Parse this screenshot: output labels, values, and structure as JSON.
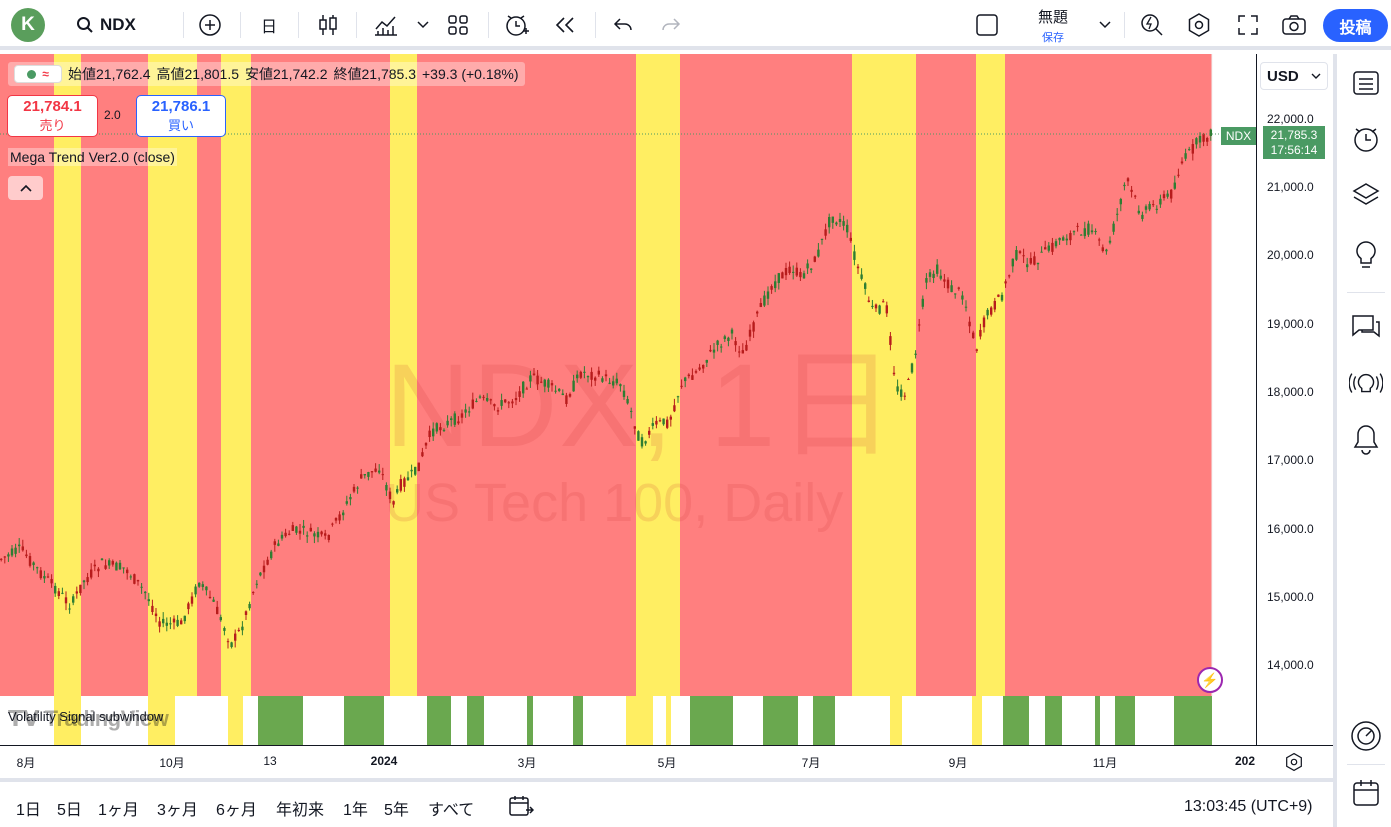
{
  "topbar": {
    "avatar_letter": "K",
    "symbol": "NDX",
    "interval": "日",
    "layout_title": "無題",
    "layout_save": "保存",
    "post_button": "投稿"
  },
  "legend": {
    "open_label": "始値",
    "open": "21,762.4",
    "high_label": "高値",
    "high": "21,801.5",
    "low_label": "安値",
    "low": "21,742.2",
    "close_label": "終値",
    "close": "21,785.3",
    "change": "+39.3 (+0.18%)"
  },
  "trade": {
    "sell_price": "21,784.1",
    "sell_label": "売り",
    "spread": "2.0",
    "buy_price": "21,786.1",
    "buy_label": "買い"
  },
  "indicator_name": "Mega Trend Ver2.0 (close)",
  "sub_indicator_name": "Volatility Signal subwindow",
  "watermark": {
    "symbol_line": "NDX, 1日",
    "desc_line": "US Tech 100, Daily"
  },
  "tv_logo": "TradingView",
  "price_axis": {
    "currency": "USD",
    "ticks": [
      "22,000.0",
      "21,000.0",
      "20,000.0",
      "19,000.0",
      "18,000.0",
      "17,000.0",
      "16,000.0",
      "15,000.0",
      "14,000.0"
    ],
    "last_price": "21,785.3",
    "countdown": "17:56:14",
    "symbol_tag": "NDX"
  },
  "time_axis": {
    "ticks": [
      {
        "label": "8月",
        "bold": false
      },
      {
        "label": "10月",
        "bold": false
      },
      {
        "label": "13",
        "bold": false
      },
      {
        "label": "2024",
        "bold": true
      },
      {
        "label": "3月",
        "bold": false
      },
      {
        "label": "5月",
        "bold": false
      },
      {
        "label": "7月",
        "bold": false
      },
      {
        "label": "9月",
        "bold": false
      },
      {
        "label": "11月",
        "bold": false
      },
      {
        "label": "202",
        "bold": true
      }
    ]
  },
  "bottombar": {
    "ranges": [
      "1日",
      "5日",
      "1ヶ月",
      "3ヶ月",
      "6ヶ月",
      "年初来",
      "1年",
      "5年",
      "すべて"
    ],
    "clock": "13:03:45 (UTC+9)"
  },
  "colors": {
    "bear_zone": "#ff7f7f",
    "bull_zone": "#ffee62",
    "up_candle": "#2e7d32",
    "down_candle": "#b71c1c",
    "signal_bar": "#6aa84f",
    "accent": "#2962ff"
  },
  "icons": [
    "plus-circle-icon",
    "candles-icon",
    "indicators-icon",
    "chevron-down-icon",
    "layouts-icon",
    "alert-icon",
    "replay-icon",
    "undo-icon",
    "redo-icon",
    "fullscreen-icon",
    "camera-icon",
    "settings-icon",
    "watchlist-icon",
    "clock-icon",
    "layers-icon",
    "ideas-icon",
    "chat-icon",
    "stream-icon",
    "bell-icon",
    "gauge-icon",
    "calendar-icon"
  ]
}
